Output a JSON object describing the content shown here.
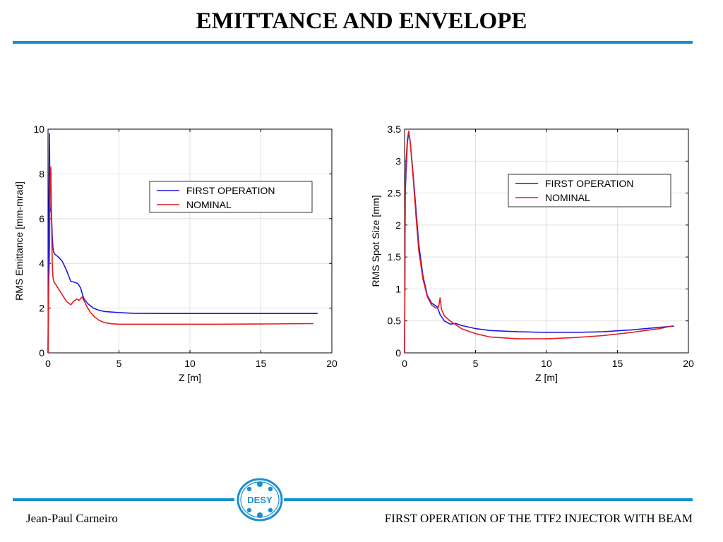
{
  "slide": {
    "title": "EMITTANCE AND ENVELOPE",
    "footer_left": "Jean-Paul Carneiro",
    "footer_right": "FIRST OPERATION OF THE TTF2 INJECTOR WITH BEAM",
    "logo_text": "DESY",
    "accent_color": "#1b8fd0"
  },
  "chart_data": [
    {
      "type": "line",
      "xlabel": "Z [m]",
      "ylabel": "RMS Emittance [mm-mrad]",
      "xlim": [
        0,
        20
      ],
      "ylim": [
        0,
        10
      ],
      "xticks": [
        "0",
        "5",
        "10",
        "15",
        "20"
      ],
      "yticks": [
        "0",
        "2",
        "4",
        "6",
        "8",
        "10"
      ],
      "grid": true,
      "legend_position": "upper-right",
      "series": [
        {
          "name": "FIRST OPERATION",
          "color": "#1a1ae6",
          "x": [
            0,
            0.05,
            0.1,
            0.15,
            0.2,
            0.25,
            0.3,
            0.35,
            0.4,
            0.5,
            0.7,
            1.0,
            1.3,
            1.6,
            1.9,
            2.1,
            2.3,
            2.5,
            2.8,
            3.2,
            3.6,
            4.0,
            5.0,
            6.0,
            8.0,
            10.0,
            12.0,
            15.0,
            17.0,
            19.0
          ],
          "y": [
            0,
            5.5,
            9.8,
            6.5,
            6.4,
            6.2,
            5.2,
            4.7,
            4.5,
            4.4,
            4.3,
            4.1,
            3.7,
            3.2,
            3.15,
            3.1,
            2.9,
            2.45,
            2.2,
            2.0,
            1.9,
            1.85,
            1.8,
            1.77,
            1.76,
            1.76,
            1.76,
            1.76,
            1.76,
            1.76
          ]
        },
        {
          "name": "NOMINAL",
          "color": "#e61a1a",
          "x": [
            0,
            0.05,
            0.1,
            0.15,
            0.2,
            0.25,
            0.3,
            0.35,
            0.4,
            0.5,
            0.7,
            1.0,
            1.3,
            1.6,
            1.8,
            2.0,
            2.2,
            2.4,
            2.6,
            2.8,
            3.0,
            3.3,
            3.6,
            4.0,
            4.5,
            5.0,
            6.0,
            8.0,
            10.0,
            12.0,
            15.0,
            18.7
          ],
          "y": [
            0,
            3.0,
            4.3,
            7.5,
            8.3,
            6.0,
            4.0,
            3.4,
            3.2,
            3.1,
            2.9,
            2.6,
            2.3,
            2.15,
            2.3,
            2.4,
            2.35,
            2.5,
            2.25,
            2.0,
            1.8,
            1.6,
            1.45,
            1.35,
            1.3,
            1.28,
            1.28,
            1.28,
            1.28,
            1.28,
            1.29,
            1.31
          ]
        }
      ]
    },
    {
      "type": "line",
      "xlabel": "Z [m]",
      "ylabel": "RMS Spot Size [mm]",
      "xlim": [
        0,
        20
      ],
      "ylim": [
        0,
        3.5
      ],
      "xticks": [
        "0",
        "5",
        "10",
        "15",
        "20"
      ],
      "yticks": [
        "0",
        "0.5",
        "1",
        "1.5",
        "2",
        "2.5",
        "3",
        "3.5"
      ],
      "grid": true,
      "legend_position": "upper-right",
      "series": [
        {
          "name": "FIRST OPERATION",
          "color": "#1a1ae6",
          "x": [
            0,
            0.05,
            0.1,
            0.2,
            0.3,
            0.4,
            0.6,
            0.8,
            1.0,
            1.3,
            1.6,
            1.9,
            2.1,
            2.3,
            2.5,
            2.8,
            3.2,
            3.6,
            4.0,
            5.0,
            6.0,
            8.0,
            10.0,
            12.0,
            14.0,
            16.0,
            18.0,
            19.0
          ],
          "y": [
            0,
            2.5,
            2.8,
            3.3,
            3.45,
            3.3,
            2.8,
            2.25,
            1.7,
            1.2,
            0.9,
            0.78,
            0.75,
            0.72,
            0.6,
            0.5,
            0.45,
            0.46,
            0.43,
            0.38,
            0.35,
            0.33,
            0.32,
            0.32,
            0.33,
            0.36,
            0.4,
            0.42
          ]
        },
        {
          "name": "NOMINAL",
          "color": "#e61a1a",
          "x": [
            0,
            0.05,
            0.1,
            0.2,
            0.3,
            0.4,
            0.6,
            0.8,
            1.0,
            1.3,
            1.6,
            1.9,
            2.2,
            2.4,
            2.5,
            2.6,
            2.8,
            3.2,
            3.6,
            4.0,
            5.0,
            6.0,
            8.0,
            10.0,
            12.0,
            14.0,
            16.0,
            18.0,
            18.8
          ],
          "y": [
            0,
            2.6,
            3.0,
            3.35,
            3.47,
            3.3,
            2.75,
            2.15,
            1.6,
            1.15,
            0.88,
            0.75,
            0.7,
            0.72,
            0.86,
            0.68,
            0.58,
            0.5,
            0.44,
            0.38,
            0.3,
            0.25,
            0.22,
            0.22,
            0.24,
            0.27,
            0.32,
            0.38,
            0.42
          ]
        }
      ]
    }
  ]
}
